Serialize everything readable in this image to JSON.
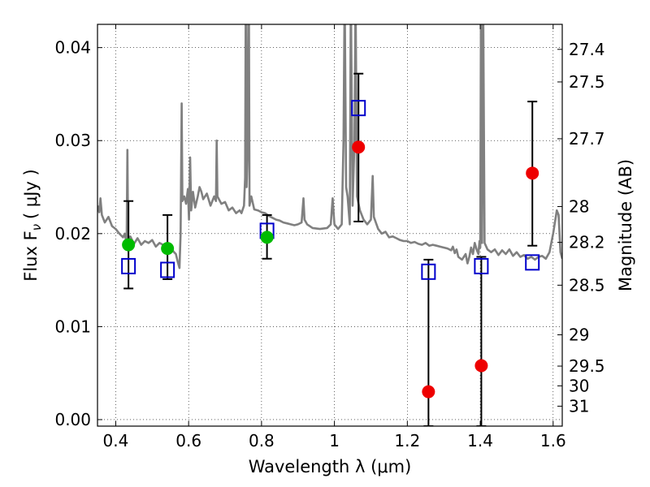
{
  "chart_data": {
    "type": "scatter",
    "title": "",
    "xlabel": "Wavelength  λ (μm)",
    "ylabel": "Flux  F",
    "ylabel_sub": "ν",
    "ylabel_unit": "( μJy )",
    "ylabel_right": "Magnitude (AB)",
    "xlim": [
      0.35,
      1.625
    ],
    "ylim": [
      -0.0007,
      0.0425
    ],
    "grid": true,
    "grid_style": "dotted",
    "x_ticks": [
      {
        "value": 0.4,
        "label": "0.4"
      },
      {
        "value": 0.6,
        "label": "0.6"
      },
      {
        "value": 0.8,
        "label": "0.8"
      },
      {
        "value": 1.0,
        "label": "1"
      },
      {
        "value": 1.2,
        "label": "1.2"
      },
      {
        "value": 1.4,
        "label": "1.4"
      },
      {
        "value": 1.6,
        "label": "1.6"
      }
    ],
    "y_ticks": [
      {
        "value": 0.0,
        "label": "0.00"
      },
      {
        "value": 0.01,
        "label": "0.01"
      },
      {
        "value": 0.02,
        "label": "0.02"
      },
      {
        "value": 0.03,
        "label": "0.03"
      },
      {
        "value": 0.04,
        "label": "0.04"
      }
    ],
    "right_ticks": [
      {
        "value": 27.4,
        "label": "27.4"
      },
      {
        "value": 27.5,
        "label": "27.5"
      },
      {
        "value": 27.7,
        "label": "27.7"
      },
      {
        "value": 28.0,
        "label": "28"
      },
      {
        "value": 28.2,
        "label": "28.2"
      },
      {
        "value": 28.5,
        "label": "28.5"
      },
      {
        "value": 29.0,
        "label": "29"
      },
      {
        "value": 29.5,
        "label": "29.5"
      },
      {
        "value": 30.0,
        "label": "30"
      },
      {
        "value": 31.0,
        "label": "31"
      }
    ],
    "series": [
      {
        "kind": "spectrum",
        "color": "#808080",
        "points": [
          [
            0.35,
            0.023
          ],
          [
            0.355,
            0.0223
          ],
          [
            0.358,
            0.0238
          ],
          [
            0.362,
            0.022
          ],
          [
            0.37,
            0.0212
          ],
          [
            0.38,
            0.0218
          ],
          [
            0.39,
            0.0208
          ],
          [
            0.4,
            0.0205
          ],
          [
            0.41,
            0.02
          ],
          [
            0.42,
            0.0196
          ],
          [
            0.425,
            0.02
          ],
          [
            0.43,
            0.0188
          ],
          [
            0.432,
            0.029
          ],
          [
            0.434,
            0.019
          ],
          [
            0.44,
            0.0197
          ],
          [
            0.45,
            0.0189
          ],
          [
            0.46,
            0.0195
          ],
          [
            0.47,
            0.0188
          ],
          [
            0.48,
            0.0192
          ],
          [
            0.49,
            0.019
          ],
          [
            0.5,
            0.0193
          ],
          [
            0.51,
            0.0186
          ],
          [
            0.52,
            0.019
          ],
          [
            0.53,
            0.0188
          ],
          [
            0.54,
            0.0183
          ],
          [
            0.55,
            0.0185
          ],
          [
            0.56,
            0.018
          ],
          [
            0.565,
            0.0178
          ],
          [
            0.57,
            0.017
          ],
          [
            0.575,
            0.0163
          ],
          [
            0.578,
            0.02
          ],
          [
            0.581,
            0.034
          ],
          [
            0.583,
            0.0235
          ],
          [
            0.588,
            0.024
          ],
          [
            0.593,
            0.0232
          ],
          [
            0.598,
            0.0248
          ],
          [
            0.601,
            0.0215
          ],
          [
            0.604,
            0.0282
          ],
          [
            0.607,
            0.0225
          ],
          [
            0.612,
            0.0245
          ],
          [
            0.618,
            0.0228
          ],
          [
            0.625,
            0.024
          ],
          [
            0.63,
            0.025
          ],
          [
            0.635,
            0.0245
          ],
          [
            0.64,
            0.0237
          ],
          [
            0.65,
            0.0243
          ],
          [
            0.66,
            0.023
          ],
          [
            0.67,
            0.024
          ],
          [
            0.675,
            0.0235
          ],
          [
            0.677,
            0.03
          ],
          [
            0.679,
            0.024
          ],
          [
            0.69,
            0.0232
          ],
          [
            0.7,
            0.0234
          ],
          [
            0.71,
            0.0225
          ],
          [
            0.72,
            0.0228
          ],
          [
            0.73,
            0.0222
          ],
          [
            0.74,
            0.0225
          ],
          [
            0.745,
            0.0222
          ],
          [
            0.752,
            0.023
          ],
          [
            0.755,
            0.026
          ],
          [
            0.757,
            0.049
          ],
          [
            0.759,
            0.025
          ],
          [
            0.762,
            0.0295
          ],
          [
            0.765,
            0.049
          ],
          [
            0.767,
            0.023
          ],
          [
            0.772,
            0.024
          ],
          [
            0.78,
            0.0226
          ],
          [
            0.79,
            0.0225
          ],
          [
            0.8,
            0.0223
          ],
          [
            0.81,
            0.0222
          ],
          [
            0.82,
            0.0219
          ],
          [
            0.83,
            0.0217
          ],
          [
            0.84,
            0.0215
          ],
          [
            0.85,
            0.0214
          ],
          [
            0.86,
            0.0212
          ],
          [
            0.87,
            0.0211
          ],
          [
            0.88,
            0.021
          ],
          [
            0.89,
            0.0209
          ],
          [
            0.9,
            0.021
          ],
          [
            0.91,
            0.0212
          ],
          [
            0.915,
            0.0238
          ],
          [
            0.918,
            0.0215
          ],
          [
            0.925,
            0.021
          ],
          [
            0.94,
            0.0206
          ],
          [
            0.96,
            0.0205
          ],
          [
            0.98,
            0.0206
          ],
          [
            0.99,
            0.021
          ],
          [
            0.995,
            0.0238
          ],
          [
            1.0,
            0.021
          ],
          [
            1.01,
            0.0205
          ],
          [
            1.02,
            0.021
          ],
          [
            1.025,
            0.03
          ],
          [
            1.028,
            0.046
          ],
          [
            1.032,
            0.025
          ],
          [
            1.036,
            0.024
          ],
          [
            1.042,
            0.021
          ],
          [
            1.045,
            0.046
          ],
          [
            1.05,
            0.023
          ],
          [
            1.055,
            0.03
          ],
          [
            1.058,
            0.046
          ],
          [
            1.062,
            0.024
          ],
          [
            1.07,
            0.0225
          ],
          [
            1.08,
            0.0215
          ],
          [
            1.09,
            0.021
          ],
          [
            1.1,
            0.0215
          ],
          [
            1.105,
            0.0262
          ],
          [
            1.108,
            0.0218
          ],
          [
            1.12,
            0.0205
          ],
          [
            1.13,
            0.02
          ],
          [
            1.14,
            0.0202
          ],
          [
            1.15,
            0.0196
          ],
          [
            1.16,
            0.0197
          ],
          [
            1.17,
            0.0195
          ],
          [
            1.18,
            0.0193
          ],
          [
            1.19,
            0.0192
          ],
          [
            1.2,
            0.0192
          ],
          [
            1.21,
            0.019
          ],
          [
            1.22,
            0.0191
          ],
          [
            1.23,
            0.0189
          ],
          [
            1.24,
            0.0188
          ],
          [
            1.25,
            0.019
          ],
          [
            1.26,
            0.0187
          ],
          [
            1.27,
            0.0188
          ],
          [
            1.28,
            0.0187
          ],
          [
            1.29,
            0.0186
          ],
          [
            1.3,
            0.0185
          ],
          [
            1.31,
            0.0184
          ],
          [
            1.32,
            0.0182
          ],
          [
            1.325,
            0.0186
          ],
          [
            1.33,
            0.0179
          ],
          [
            1.335,
            0.0183
          ],
          [
            1.34,
            0.0175
          ],
          [
            1.35,
            0.0172
          ],
          [
            1.36,
            0.0178
          ],
          [
            1.365,
            0.0168
          ],
          [
            1.37,
            0.0175
          ],
          [
            1.375,
            0.0185
          ],
          [
            1.38,
            0.0178
          ],
          [
            1.385,
            0.019
          ],
          [
            1.39,
            0.0183
          ],
          [
            1.395,
            0.0178
          ],
          [
            1.398,
            0.0192
          ],
          [
            1.4,
            0.0185
          ],
          [
            1.402,
            0.046
          ],
          [
            1.405,
            0.019
          ],
          [
            1.408,
            0.046
          ],
          [
            1.412,
            0.019
          ],
          [
            1.42,
            0.0183
          ],
          [
            1.43,
            0.018
          ],
          [
            1.44,
            0.0183
          ],
          [
            1.45,
            0.0177
          ],
          [
            1.46,
            0.0182
          ],
          [
            1.47,
            0.0178
          ],
          [
            1.48,
            0.0183
          ],
          [
            1.49,
            0.0176
          ],
          [
            1.5,
            0.018
          ],
          [
            1.51,
            0.0175
          ],
          [
            1.52,
            0.0177
          ],
          [
            1.53,
            0.0173
          ],
          [
            1.54,
            0.0175
          ],
          [
            1.55,
            0.0172
          ],
          [
            1.56,
            0.0175
          ],
          [
            1.57,
            0.0176
          ],
          [
            1.58,
            0.0173
          ],
          [
            1.59,
            0.018
          ],
          [
            1.6,
            0.02
          ],
          [
            1.61,
            0.0225
          ],
          [
            1.615,
            0.022
          ],
          [
            1.62,
            0.018
          ],
          [
            1.625,
            0.0173
          ]
        ]
      },
      {
        "kind": "model",
        "marker": "open-square",
        "color": "#0000cc",
        "points": [
          {
            "x": 0.435,
            "y": 0.0165
          },
          {
            "x": 0.542,
            "y": 0.0161
          },
          {
            "x": 0.815,
            "y": 0.0203
          },
          {
            "x": 1.066,
            "y": 0.0335
          },
          {
            "x": 1.258,
            "y": 0.0159
          },
          {
            "x": 1.403,
            "y": 0.0165
          },
          {
            "x": 1.543,
            "y": 0.0169
          }
        ]
      },
      {
        "kind": "detections",
        "marker": "filled-circle",
        "color": "#00bb00",
        "points": [
          {
            "x": 0.435,
            "y": 0.0188,
            "err_low": 0.0141,
            "err_high": 0.0235
          },
          {
            "x": 0.542,
            "y": 0.0184,
            "err_low": 0.0151,
            "err_high": 0.022
          },
          {
            "x": 0.815,
            "y": 0.0196,
            "err_low": 0.0173,
            "err_high": 0.022
          }
        ]
      },
      {
        "kind": "low-significance",
        "marker": "filled-circle",
        "color": "#ee0000",
        "points": [
          {
            "x": 1.066,
            "y": 0.0293,
            "err_low": 0.0213,
            "err_high": 0.0372
          },
          {
            "x": 1.258,
            "y": 0.003,
            "err_low": -0.0007,
            "err_high": 0.0172
          },
          {
            "x": 1.403,
            "y": 0.0058,
            "err_low": -0.0007,
            "err_high": 0.0175
          },
          {
            "x": 1.543,
            "y": 0.0265,
            "err_low": 0.0187,
            "err_high": 0.0342
          }
        ]
      }
    ]
  }
}
